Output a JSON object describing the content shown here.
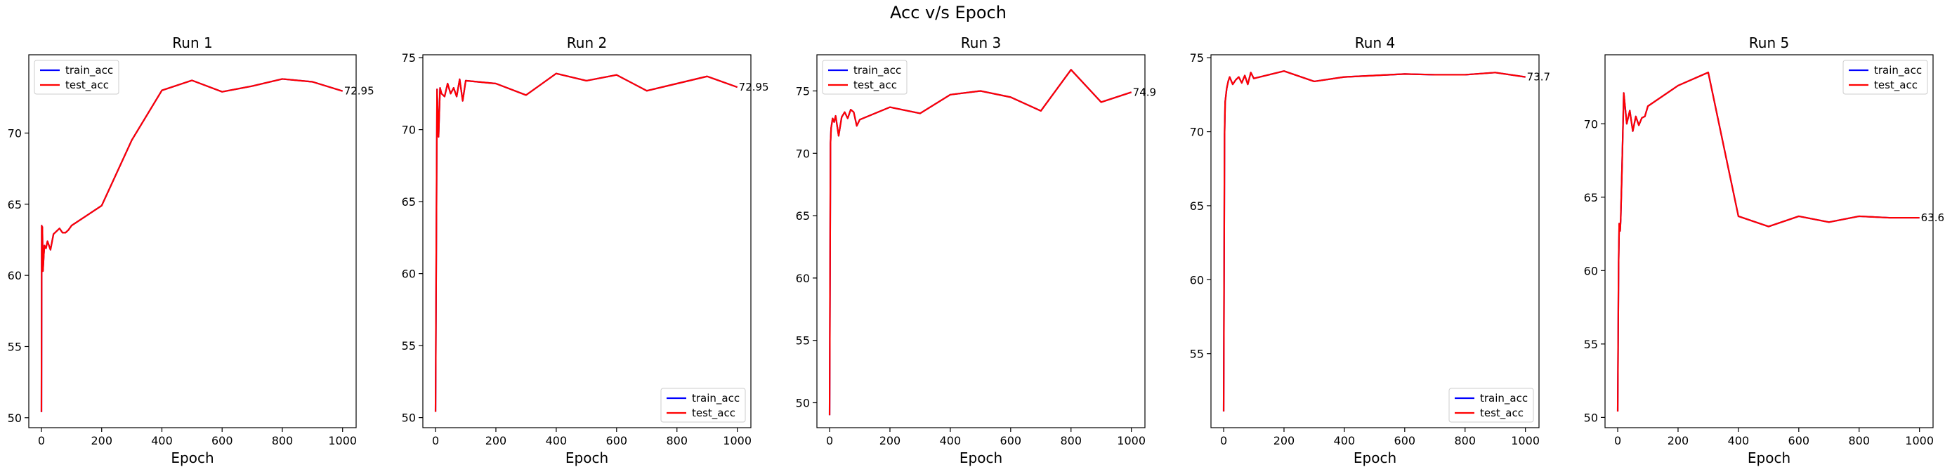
{
  "figure": {
    "title": "Acc v/s Epoch"
  },
  "colors": {
    "train": "#0000ff",
    "test": "#ff0000",
    "axes": "#000000",
    "background": "#ffffff"
  },
  "chart_data": [
    {
      "type": "line",
      "title": "Run 1",
      "xlabel": "Epoch",
      "ylabel": "",
      "xlim": [
        -42,
        1045
      ],
      "ylim": [
        49.3,
        75.5
      ],
      "xticks": [
        0,
        200,
        400,
        600,
        800,
        1000
      ],
      "yticks": [
        50,
        55,
        60,
        65,
        70
      ],
      "legend_loc": "upper left",
      "end_label": "72.95",
      "end_label_at": [
        1000,
        72.95
      ],
      "series": [
        {
          "name": "train_acc",
          "color": "#0000ff",
          "x": [
            0,
            1,
            2,
            3,
            5,
            8,
            10,
            15,
            20,
            30,
            40,
            50,
            60,
            70,
            80,
            90,
            100,
            200,
            300,
            400,
            500,
            600,
            700,
            800,
            900,
            1000
          ],
          "y": [
            50.4,
            63.5,
            60.8,
            63.4,
            60.3,
            61.5,
            62.1,
            61.9,
            62.4,
            61.8,
            62.9,
            63.1,
            63.3,
            63.0,
            63.0,
            63.2,
            63.5,
            64.9,
            69.5,
            73.0,
            73.7,
            72.9,
            73.3,
            73.8,
            73.6,
            72.95
          ]
        },
        {
          "name": "test_acc",
          "color": "#ff0000",
          "x": [
            0,
            1,
            2,
            3,
            5,
            8,
            10,
            15,
            20,
            30,
            40,
            50,
            60,
            70,
            80,
            90,
            100,
            200,
            300,
            400,
            500,
            600,
            700,
            800,
            900,
            1000
          ],
          "y": [
            50.4,
            63.5,
            60.8,
            63.4,
            60.3,
            61.5,
            62.1,
            61.9,
            62.4,
            61.8,
            62.9,
            63.1,
            63.3,
            63.0,
            63.0,
            63.2,
            63.5,
            64.9,
            69.5,
            73.0,
            73.7,
            72.9,
            73.3,
            73.8,
            73.6,
            72.95
          ]
        }
      ]
    },
    {
      "type": "line",
      "title": "Run 2",
      "xlabel": "Epoch",
      "ylabel": "",
      "xlim": [
        -42,
        1045
      ],
      "ylim": [
        49.3,
        75.2
      ],
      "xticks": [
        0,
        200,
        400,
        600,
        800,
        1000
      ],
      "yticks": [
        50,
        55,
        60,
        65,
        70,
        75
      ],
      "legend_loc": "lower right",
      "end_label": "72.95",
      "end_label_at": [
        1000,
        72.95
      ],
      "series": [
        {
          "name": "train_acc",
          "color": "#0000ff",
          "x": [
            0,
            5,
            10,
            15,
            20,
            30,
            40,
            50,
            60,
            70,
            80,
            90,
            100,
            200,
            300,
            400,
            500,
            600,
            700,
            800,
            900,
            1000
          ],
          "y": [
            50.4,
            72.8,
            69.5,
            72.9,
            72.5,
            72.3,
            73.2,
            72.5,
            72.9,
            72.3,
            73.5,
            72.0,
            73.4,
            73.2,
            72.4,
            73.9,
            73.4,
            73.8,
            72.7,
            73.2,
            73.7,
            72.95
          ]
        },
        {
          "name": "test_acc",
          "color": "#ff0000",
          "x": [
            0,
            5,
            10,
            15,
            20,
            30,
            40,
            50,
            60,
            70,
            80,
            90,
            100,
            200,
            300,
            400,
            500,
            600,
            700,
            800,
            900,
            1000
          ],
          "y": [
            50.4,
            72.8,
            69.5,
            72.9,
            72.5,
            72.3,
            73.2,
            72.5,
            72.9,
            72.3,
            73.5,
            72.0,
            73.4,
            73.2,
            72.4,
            73.9,
            73.4,
            73.8,
            72.7,
            73.2,
            73.7,
            72.95
          ]
        }
      ]
    },
    {
      "type": "line",
      "title": "Run 3",
      "xlabel": "Epoch",
      "ylabel": "",
      "xlim": [
        -42,
        1045
      ],
      "ylim": [
        48.0,
        77.9
      ],
      "xticks": [
        0,
        200,
        400,
        600,
        800,
        1000
      ],
      "yticks": [
        50,
        55,
        60,
        65,
        70,
        75
      ],
      "legend_loc": "upper left",
      "end_label": "74.9",
      "end_label_at": [
        1000,
        74.9
      ],
      "series": [
        {
          "name": "train_acc",
          "color": "#0000ff",
          "x": [
            0,
            3,
            5,
            10,
            15,
            20,
            30,
            40,
            50,
            60,
            70,
            80,
            90,
            100,
            200,
            300,
            400,
            500,
            600,
            700,
            800,
            900,
            1000
          ],
          "y": [
            49.0,
            70.8,
            72.0,
            72.8,
            72.5,
            73.0,
            71.4,
            72.9,
            73.3,
            72.8,
            73.5,
            73.3,
            72.2,
            72.7,
            73.7,
            73.2,
            74.7,
            75.0,
            74.5,
            73.4,
            76.7,
            74.1,
            74.9
          ]
        },
        {
          "name": "test_acc",
          "color": "#ff0000",
          "x": [
            0,
            3,
            5,
            10,
            15,
            20,
            30,
            40,
            50,
            60,
            70,
            80,
            90,
            100,
            200,
            300,
            400,
            500,
            600,
            700,
            800,
            900,
            1000
          ],
          "y": [
            49.0,
            70.8,
            72.0,
            72.8,
            72.5,
            73.0,
            71.4,
            72.9,
            73.3,
            72.8,
            73.5,
            73.3,
            72.2,
            72.7,
            73.7,
            73.2,
            74.7,
            75.0,
            74.5,
            73.4,
            76.7,
            74.1,
            74.9
          ]
        }
      ]
    },
    {
      "type": "line",
      "title": "Run 4",
      "xlabel": "Epoch",
      "ylabel": "",
      "xlim": [
        -42,
        1045
      ],
      "ylim": [
        50.0,
        75.2
      ],
      "xticks": [
        0,
        200,
        400,
        600,
        800,
        1000
      ],
      "yticks": [
        55,
        60,
        65,
        70,
        75
      ],
      "legend_loc": "lower right",
      "end_label": "73.7",
      "end_label_at": [
        1000,
        73.7
      ],
      "series": [
        {
          "name": "train_acc",
          "color": "#0000ff",
          "x": [
            0,
            3,
            5,
            10,
            15,
            20,
            30,
            40,
            50,
            60,
            70,
            80,
            90,
            100,
            200,
            300,
            400,
            500,
            600,
            700,
            800,
            900,
            1000
          ],
          "y": [
            51.1,
            69.8,
            72.0,
            72.9,
            73.4,
            73.7,
            73.2,
            73.5,
            73.7,
            73.3,
            73.8,
            73.2,
            74.0,
            73.6,
            74.1,
            73.4,
            73.7,
            73.8,
            73.9,
            73.85,
            73.85,
            74.0,
            73.7
          ]
        },
        {
          "name": "test_acc",
          "color": "#ff0000",
          "x": [
            0,
            3,
            5,
            10,
            15,
            20,
            30,
            40,
            50,
            60,
            70,
            80,
            90,
            100,
            200,
            300,
            400,
            500,
            600,
            700,
            800,
            900,
            1000
          ],
          "y": [
            51.1,
            69.8,
            72.0,
            72.9,
            73.4,
            73.7,
            73.2,
            73.5,
            73.7,
            73.3,
            73.8,
            73.2,
            74.0,
            73.6,
            74.1,
            73.4,
            73.7,
            73.8,
            73.9,
            73.85,
            73.85,
            74.0,
            73.7
          ]
        }
      ]
    },
    {
      "type": "line",
      "title": "Run 5",
      "xlabel": "Epoch",
      "ylabel": "",
      "xlim": [
        -42,
        1045
      ],
      "ylim": [
        49.3,
        74.7
      ],
      "xticks": [
        0,
        200,
        400,
        600,
        800,
        1000
      ],
      "yticks": [
        50,
        55,
        60,
        65,
        70
      ],
      "legend_loc": "upper right",
      "end_label": "63.6",
      "end_label_at": [
        1000,
        63.6
      ],
      "series": [
        {
          "name": "train_acc",
          "color": "#0000ff",
          "x": [
            0,
            3,
            5,
            8,
            10,
            15,
            20,
            30,
            40,
            50,
            60,
            70,
            80,
            90,
            100,
            200,
            300,
            400,
            500,
            600,
            700,
            800,
            900,
            1000
          ],
          "y": [
            50.4,
            60.5,
            63.2,
            62.7,
            63.5,
            67.6,
            72.1,
            70.0,
            70.9,
            69.5,
            70.5,
            69.9,
            70.4,
            70.5,
            71.2,
            72.6,
            73.5,
            63.7,
            63.0,
            63.7,
            63.3,
            63.7,
            63.6,
            63.6
          ]
        },
        {
          "name": "test_acc",
          "color": "#ff0000",
          "x": [
            0,
            3,
            5,
            8,
            10,
            15,
            20,
            30,
            40,
            50,
            60,
            70,
            80,
            90,
            100,
            200,
            300,
            400,
            500,
            600,
            700,
            800,
            900,
            1000
          ],
          "y": [
            50.4,
            60.5,
            63.2,
            62.7,
            63.5,
            67.6,
            72.1,
            70.0,
            70.9,
            69.5,
            70.5,
            69.9,
            70.4,
            70.5,
            71.2,
            72.6,
            73.5,
            63.7,
            63.0,
            63.7,
            63.3,
            63.7,
            63.6,
            63.6
          ]
        }
      ]
    }
  ]
}
